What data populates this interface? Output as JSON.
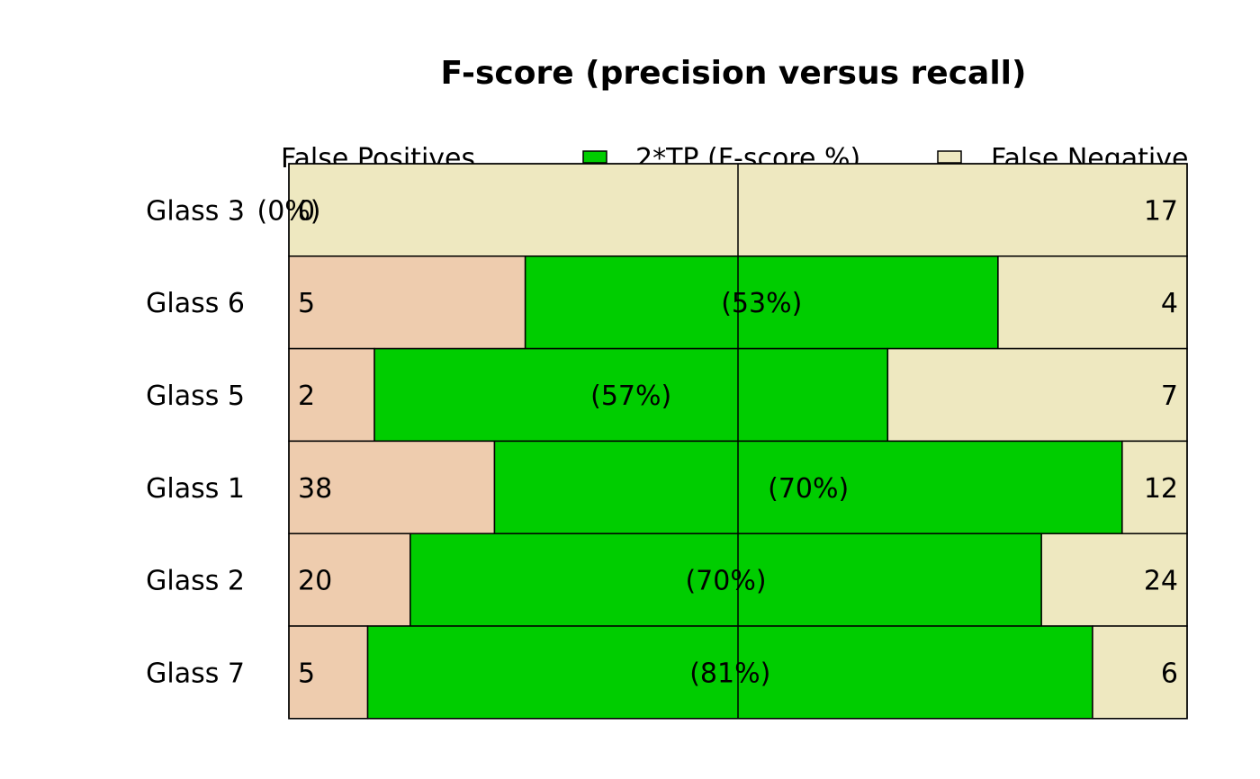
{
  "chart_data": {
    "type": "bar",
    "stacked": true,
    "orientation": "horizontal",
    "normalized": true,
    "title": "F-score (precision versus recall)",
    "xlabel": "",
    "ylabel": "",
    "legend_position": "top",
    "legend": [
      {
        "name": "False Positives",
        "color": "#EECCAE"
      },
      {
        "name": "2*TP (F-score %)",
        "color": "#00CD00"
      },
      {
        "name": "False Negatives",
        "color": "#EEE8C0"
      }
    ],
    "categories": [
      "Glass 3",
      "Glass 6",
      "Glass 5",
      "Glass 1",
      "Glass 2",
      "Glass 7"
    ],
    "rows": [
      {
        "category": "Glass 3",
        "fp": 0,
        "tp2": 0,
        "fn": 17,
        "fp_label": "0",
        "tp_label": "(0%)",
        "fn_label": "17"
      },
      {
        "category": "Glass 6",
        "fp": 5,
        "tp2": 10,
        "fn": 4,
        "fp_label": "5",
        "tp_label": "(53%)",
        "fn_label": "4"
      },
      {
        "category": "Glass 5",
        "fp": 2,
        "tp2": 12,
        "fn": 7,
        "fp_label": "2",
        "tp_label": "(57%)",
        "fn_label": "7"
      },
      {
        "category": "Glass 1",
        "fp": 38,
        "tp2": 116,
        "fn": 12,
        "fp_label": "38",
        "tp_label": "(70%)",
        "fn_label": "12"
      },
      {
        "category": "Glass 2",
        "fp": 20,
        "tp2": 104,
        "fn": 24,
        "fp_label": "20",
        "tp_label": "(70%)",
        "fn_label": "24"
      },
      {
        "category": "Glass 7",
        "fp": 5,
        "tp2": 46,
        "fn": 6,
        "fp_label": "5",
        "tp_label": "(81%)",
        "fn_label": "6"
      }
    ],
    "reference_line": 0.5,
    "grid": false
  }
}
